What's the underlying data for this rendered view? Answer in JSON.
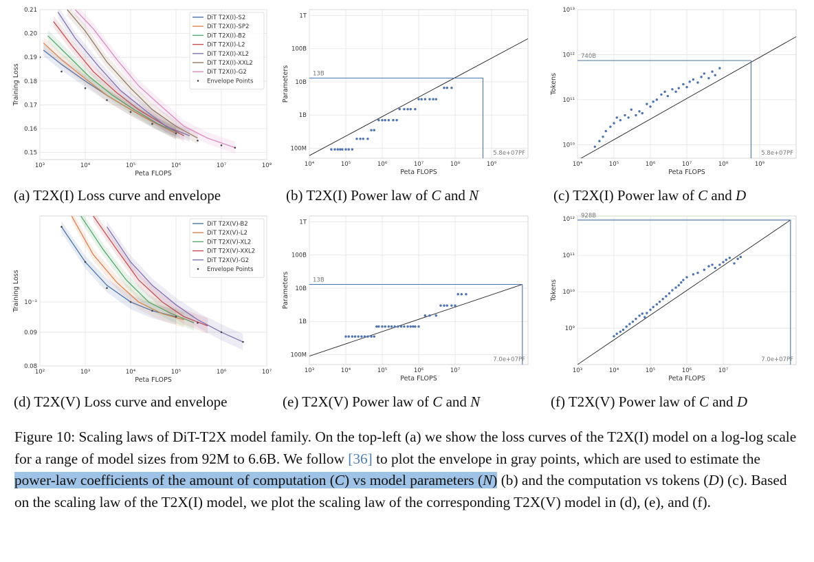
{
  "subcaptions": {
    "a": "(a) T2X(I) Loss curve and envelope",
    "b_pre": "(b) T2X(I) Power law of ",
    "b_c": "C",
    "b_mid": " and ",
    "b_n": "N",
    "c_pre": "(c) T2X(I) Power law of ",
    "c_c": "C",
    "c_mid": " and ",
    "c_d": "D",
    "d": "(d) T2X(V) Loss curve and envelope",
    "e_pre": "(e) T2X(V) Power law of ",
    "e_c": "C",
    "e_mid": " and ",
    "e_n": "N",
    "f_pre": "(f) T2X(V) Power law of ",
    "f_c": "C",
    "f_mid": " and ",
    "f_d": "D"
  },
  "figure_caption": {
    "t1": "Figure 10: Scaling laws of DiT-T2X model family. On the top-left (a) we show the loss curves of the T2X(I) model on a log-log scale for a range of model sizes from 92M to 6.6B. We follow ",
    "cite": "[36]",
    "t2": " to plot the envelope in gray points, which are used to estimate the ",
    "h1": "power-law coefficients of the amount of computation (",
    "h_c": "C",
    "h2": ") vs model parameters (",
    "h_n": "N",
    "h3": ")",
    "t3": " (b) and the computation vs tokens (",
    "t_d": "D",
    "t4": ") (c). Based on the scaling law of the T2X(I) model, we plot the scaling law of the corresponding T2X(V) model in (d), (e), and (f)."
  },
  "chart_data": [
    {
      "id": "a",
      "type": "line",
      "xlabel": "Peta FLOPS",
      "ylabel": "Training Loss",
      "xscale": "log",
      "xlim": [
        1000,
        100000000
      ],
      "xticks": [
        "10³",
        "10⁴",
        "10⁵",
        "10⁶",
        "10⁷",
        "10⁸"
      ],
      "yticks": [
        "0.15",
        "0.16",
        "0.17",
        "0.18",
        "0.19",
        "0.20",
        "0.21"
      ],
      "ylim": [
        0.147,
        0.21
      ],
      "grid": true,
      "legend_position": "top-right",
      "series": [
        {
          "name": "DiT T2X(I)-S2",
          "color": "#4c72b0",
          "x": [
            1200,
            3000,
            10000,
            30000,
            100000,
            300000,
            1000000
          ],
          "y": [
            0.193,
            0.187,
            0.18,
            0.174,
            0.168,
            0.163,
            0.158
          ]
        },
        {
          "name": "DiT T2X(I)-SP2",
          "color": "#dd8452",
          "x": [
            1200,
            3000,
            10000,
            30000,
            100000,
            300000,
            1000000
          ],
          "y": [
            0.196,
            0.189,
            0.181,
            0.174,
            0.168,
            0.163,
            0.158
          ]
        },
        {
          "name": "DiT T2X(I)-B2",
          "color": "#55a868",
          "x": [
            1500,
            4000,
            12000,
            40000,
            120000,
            400000,
            1200000
          ],
          "y": [
            0.199,
            0.191,
            0.182,
            0.174,
            0.168,
            0.162,
            0.158
          ]
        },
        {
          "name": "DiT T2X(I)-L2",
          "color": "#c44e52",
          "x": [
            2000,
            5000,
            15000,
            50000,
            150000,
            500000,
            1500000
          ],
          "y": [
            0.205,
            0.195,
            0.184,
            0.175,
            0.168,
            0.162,
            0.157
          ]
        },
        {
          "name": "DiT T2X(I)-XL2",
          "color": "#8172b3",
          "x": [
            2500,
            6000,
            20000,
            60000,
            200000,
            600000,
            2000000
          ],
          "y": [
            0.209,
            0.198,
            0.186,
            0.176,
            0.168,
            0.161,
            0.157
          ]
        },
        {
          "name": "DiT T2X(I)-XXL2",
          "color": "#937860",
          "x": [
            4000,
            10000,
            30000,
            100000,
            300000,
            1000000,
            3000000
          ],
          "y": [
            0.21,
            0.201,
            0.188,
            0.177,
            0.168,
            0.161,
            0.156
          ]
        },
        {
          "name": "DiT T2X(I)-G2",
          "color": "#da8bc3",
          "x": [
            6000,
            15000,
            50000,
            150000,
            500000,
            1500000,
            5000000,
            20000000
          ],
          "y": [
            0.21,
            0.202,
            0.189,
            0.178,
            0.169,
            0.161,
            0.156,
            0.152
          ]
        },
        {
          "name": "Envelope Points",
          "color": "#333333",
          "x": [
            1000,
            3000,
            10000,
            30000,
            100000,
            300000,
            1000000,
            3000000,
            10000000,
            20000000
          ],
          "y": [
            0.19,
            0.184,
            0.177,
            0.172,
            0.167,
            0.162,
            0.158,
            0.155,
            0.153,
            0.152
          ]
        }
      ]
    },
    {
      "id": "b",
      "type": "scatter",
      "xlabel": "Peta FLOPS",
      "ylabel": "Parameters",
      "xscale": "log",
      "yscale": "log",
      "xlim": [
        1000,
        1000000000
      ],
      "ylim": [
        50000000,
        1500000000000
      ],
      "xticks": [
        "10⁴",
        "10⁵",
        "10⁶",
        "10⁷",
        "10⁸",
        "10⁹"
      ],
      "yticks": [
        "100M",
        "1B",
        "10B",
        "100B",
        "1T"
      ],
      "grid": true,
      "points": {
        "x": [
          4000,
          5000,
          6000,
          7000,
          8000,
          10000,
          12000,
          15000,
          20000,
          25000,
          30000,
          40000,
          50000,
          60000,
          80000,
          100000,
          120000,
          150000,
          200000,
          250000,
          300000,
          400000,
          500000,
          600000,
          800000,
          1000000,
          1200000,
          1500000,
          2000000,
          2500000,
          3000000,
          5000000,
          6000000,
          8000000
        ],
        "y": [
          92000000,
          92000000,
          92000000,
          92000000,
          92000000,
          92000000,
          92000000,
          92000000,
          192000000,
          192000000,
          192000000,
          192000000,
          350000000,
          350000000,
          700000000,
          700000000,
          700000000,
          700000000,
          700000000,
          700000000,
          1500000000,
          1500000000,
          1500000000,
          1500000000,
          1500000000,
          3000000000,
          3000000000,
          3000000000,
          3000000000,
          3000000000,
          3000000000,
          6600000000,
          6600000000,
          6600000000
        ]
      },
      "fit": {
        "x": [
          1000,
          1000000000
        ],
        "y": [
          60000000,
          200000000000
        ]
      },
      "annotation": {
        "x": 58000000,
        "y": 13000000000,
        "x_label": "5.8e+07PF",
        "y_label": "13B"
      }
    },
    {
      "id": "c",
      "type": "scatter",
      "xlabel": "Peta FLOPS",
      "ylabel": "Tokens",
      "xscale": "log",
      "yscale": "log",
      "xlim": [
        1000,
        1000000000
      ],
      "ylim": [
        5000000000,
        10000000000000
      ],
      "xticks": [
        "10⁴",
        "10⁵",
        "10⁶",
        "10⁷",
        "10⁸",
        "10⁹"
      ],
      "yticks": [
        "10¹⁰",
        "10¹¹",
        "10¹²",
        "10¹³"
      ],
      "grid": true,
      "points": {
        "x": [
          3000,
          4000,
          5000,
          6000,
          8000,
          10000,
          12000,
          15000,
          20000,
          25000,
          30000,
          40000,
          50000,
          60000,
          80000,
          100000,
          120000,
          150000,
          200000,
          250000,
          300000,
          400000,
          500000,
          600000,
          800000,
          1000000,
          1200000,
          1500000,
          2000000,
          2500000,
          3000000,
          4000000,
          5000000,
          6000000,
          8000000
        ],
        "y": [
          9000000000,
          12000000000,
          15000000000,
          20000000000,
          25000000000,
          30000000000,
          40000000000,
          35000000000,
          45000000000,
          40000000000,
          60000000000,
          45000000000,
          55000000000,
          50000000000,
          80000000000,
          70000000000,
          90000000000,
          100000000000,
          130000000000,
          150000000000,
          120000000000,
          170000000000,
          150000000000,
          180000000000,
          220000000000,
          190000000000,
          250000000000,
          280000000000,
          240000000000,
          320000000000,
          380000000000,
          300000000000,
          420000000000,
          350000000000,
          500000000000
        ]
      },
      "fit": {
        "x": [
          1000,
          1000000000
        ],
        "y": [
          4500000000,
          2500000000000
        ]
      },
      "annotation": {
        "x": 58000000,
        "y": 740000000000,
        "x_label": "5.8e+07PF",
        "y_label": "740B"
      }
    },
    {
      "id": "d",
      "type": "line",
      "xlabel": "Peta FLOPS",
      "ylabel": "Training Loss",
      "xscale": "log",
      "yscale": "log",
      "xlim": [
        100,
        10000000
      ],
      "ylim": [
        0.08,
        0.135
      ],
      "xticks": [
        "10²",
        "10³",
        "10⁴",
        "10⁵",
        "10⁶",
        "10⁷"
      ],
      "yticks": [
        "10⁻¹",
        "0.09",
        "0.08"
      ],
      "grid": true,
      "legend_position": "top-right",
      "series": [
        {
          "name": "DiT T2X(V)-B2",
          "color": "#4c72b0",
          "x": [
            300,
            1000,
            3000,
            10000,
            30000,
            100000
          ],
          "y": [
            0.13,
            0.115,
            0.106,
            0.1,
            0.097,
            0.095
          ]
        },
        {
          "name": "DiT T2X(V)-L2",
          "color": "#dd8452",
          "x": [
            500,
            1500,
            5000,
            15000,
            50000,
            150000
          ],
          "y": [
            0.135,
            0.118,
            0.107,
            0.1,
            0.096,
            0.094
          ]
        },
        {
          "name": "DiT T2X(V)-XL2",
          "color": "#55a868",
          "x": [
            800,
            2500,
            8000,
            25000,
            80000,
            250000
          ],
          "y": [
            0.135,
            0.12,
            0.108,
            0.1,
            0.096,
            0.093
          ]
        },
        {
          "name": "DiT T2X(V)-XXL2",
          "color": "#c44e52",
          "x": [
            1500,
            5000,
            15000,
            50000,
            150000,
            500000
          ],
          "y": [
            0.135,
            0.12,
            0.108,
            0.1,
            0.095,
            0.092
          ]
        },
        {
          "name": "DiT T2X(V)-G2",
          "color": "#8172b3",
          "x": [
            3000,
            10000,
            30000,
            100000,
            300000,
            1000000,
            3000000
          ],
          "y": [
            0.13,
            0.115,
            0.106,
            0.099,
            0.094,
            0.09,
            0.087
          ]
        },
        {
          "name": "Envelope Points",
          "color": "#333333",
          "x": [
            300,
            1000,
            3000,
            10000,
            30000,
            100000,
            300000,
            1000000,
            3000000
          ],
          "y": [
            0.13,
            0.115,
            0.105,
            0.1,
            0.097,
            0.095,
            0.093,
            0.09,
            0.087
          ]
        }
      ]
    },
    {
      "id": "e",
      "type": "scatter",
      "xlabel": "Peta FLOPS",
      "ylabel": "Parameters",
      "xscale": "log",
      "yscale": "log",
      "xlim": [
        100,
        100000000
      ],
      "ylim": [
        50000000,
        1500000000000
      ],
      "xticks": [
        "10³",
        "10⁴",
        "10⁵",
        "10⁶",
        "10⁷"
      ],
      "yticks": [
        "100M",
        "1B",
        "10B",
        "100B",
        "1T"
      ],
      "grid": true,
      "points": {
        "x": [
          1000,
          1200,
          1500,
          1800,
          2200,
          2700,
          3300,
          4000,
          5000,
          6000,
          7000,
          8000,
          10000,
          12000,
          15000,
          18000,
          22000,
          27000,
          33000,
          40000,
          50000,
          60000,
          70000,
          80000,
          100000,
          150000,
          200000,
          300000,
          400000,
          500000,
          600000,
          800000,
          1000000,
          1200000,
          1500000,
          2000000
        ],
        "y": [
          350000000,
          350000000,
          350000000,
          350000000,
          350000000,
          350000000,
          350000000,
          350000000,
          350000000,
          350000000,
          700000000,
          700000000,
          700000000,
          700000000,
          700000000,
          700000000,
          700000000,
          700000000,
          700000000,
          700000000,
          700000000,
          700000000,
          700000000,
          700000000,
          700000000,
          1500000000,
          1500000000,
          1500000000,
          3000000000,
          3000000000,
          3000000000,
          3000000000,
          3000000000,
          6600000000,
          6600000000,
          6600000000
        ]
      },
      "fit": {
        "x": [
          100,
          70000000
        ],
        "y": [
          90000000,
          13000000000
        ]
      },
      "annotation": {
        "x": 70000000,
        "y": 13000000000,
        "x_label": "7.0e+07PF",
        "y_label": "13B"
      }
    },
    {
      "id": "f",
      "type": "scatter",
      "xlabel": "Peta FLOPS",
      "ylabel": "Tokens",
      "xscale": "log",
      "yscale": "log",
      "xlim": [
        100,
        100000000
      ],
      "ylim": [
        100000000,
        1200000000000
      ],
      "xticks": [
        "10³",
        "10⁴",
        "10⁵",
        "10⁶",
        "10⁷"
      ],
      "yticks": [
        "10⁹",
        "10¹⁰",
        "10¹¹",
        "10¹²"
      ],
      "grid": true,
      "points": {
        "x": [
          1000,
          1200,
          1500,
          1800,
          2200,
          2700,
          3300,
          4000,
          5000,
          6000,
          7000,
          8000,
          10000,
          12000,
          15000,
          18000,
          22000,
          27000,
          33000,
          40000,
          50000,
          60000,
          70000,
          80000,
          100000,
          150000,
          200000,
          300000,
          400000,
          500000,
          600000,
          800000,
          1000000,
          1200000,
          1500000,
          2000000,
          2500000,
          3000000
        ],
        "y": [
          600000000,
          700000000,
          800000000,
          900000000,
          1100000000,
          1300000000,
          1500000000,
          1800000000,
          2200000000,
          2500000000,
          2000000000,
          2600000000,
          3200000000,
          3800000000,
          4500000000,
          5300000000,
          6300000000,
          7500000000,
          9000000000,
          11000000000,
          13000000000,
          15000000000,
          18000000000,
          21000000000,
          25000000000,
          30000000000,
          33000000000,
          40000000000,
          50000000000,
          55000000000,
          45000000000,
          55000000000,
          65000000000,
          75000000000,
          85000000000,
          60000000000,
          80000000000,
          90000000000
        ]
      },
      "fit": {
        "x": [
          100,
          70000000
        ],
        "y": [
          100000000,
          928000000000
        ]
      },
      "annotation": {
        "x": 70000000,
        "y": 928000000000,
        "x_label": "7.0e+07PF",
        "y_label": "928B"
      }
    }
  ]
}
